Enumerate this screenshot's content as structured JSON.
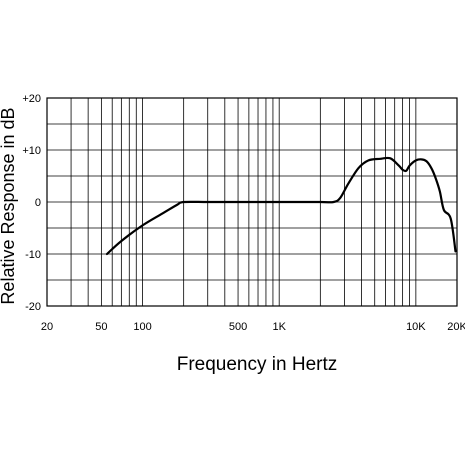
{
  "chart_data": {
    "type": "line",
    "title": "",
    "xlabel": "Frequency in Hertz",
    "ylabel": "Relative Response in dB",
    "x_scale": "log",
    "xlim": [
      20,
      20000
    ],
    "ylim": [
      -20,
      20
    ],
    "grid": true,
    "y_ticks": [
      {
        "value": 20,
        "label": "+20"
      },
      {
        "value": 10,
        "label": "+10"
      },
      {
        "value": 0,
        "label": "0"
      },
      {
        "value": -10,
        "label": "-10"
      },
      {
        "value": -20,
        "label": "-20"
      }
    ],
    "x_ticks": [
      {
        "value": 20,
        "label": "20"
      },
      {
        "value": 50,
        "label": "50"
      },
      {
        "value": 100,
        "label": "100"
      },
      {
        "value": 500,
        "label": "500"
      },
      {
        "value": 1000,
        "label": "1K"
      },
      {
        "value": 10000,
        "label": "10K"
      },
      {
        "value": 20000,
        "label": "20K"
      }
    ],
    "line_color": "#000000",
    "series": [
      {
        "x": [
          55,
          70,
          100,
          140,
          180,
          200,
          300,
          500,
          1000,
          2000,
          2500,
          2800,
          3200,
          3800,
          4500,
          5500,
          6500,
          7500,
          8000,
          8500,
          9000,
          10000,
          11000,
          12000,
          13000,
          14000,
          15000,
          16000,
          18000,
          19500
        ],
        "y": [
          -10,
          -7.5,
          -4.5,
          -2.2,
          -0.5,
          0,
          0,
          0,
          0,
          0,
          0,
          0.8,
          3.5,
          6.5,
          8.0,
          8.3,
          8.4,
          7.0,
          6.2,
          6.0,
          7.0,
          8.0,
          8.2,
          7.8,
          6.5,
          4.5,
          2.0,
          -1.5,
          -3.2,
          -9.5
        ]
      }
    ]
  }
}
